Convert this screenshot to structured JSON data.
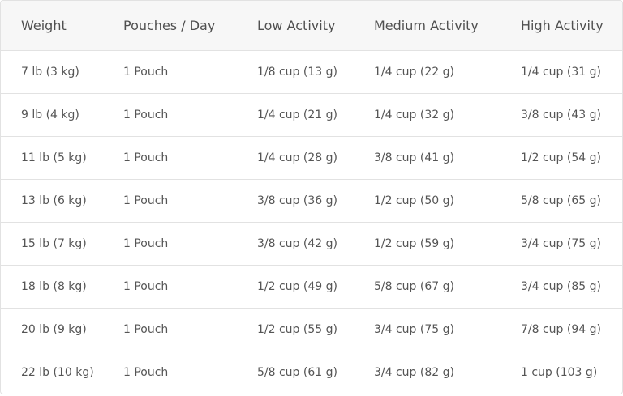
{
  "table": {
    "headers": [
      "Weight",
      "Pouches / Day",
      "Low Activity",
      "Medium Activity",
      "High Activity"
    ],
    "rows": [
      [
        "7 lb (3 kg)",
        "1 Pouch",
        "1/8 cup (13 g)",
        "1/4 cup (22 g)",
        "1/4 cup (31 g)"
      ],
      [
        "9 lb (4 kg)",
        "1 Pouch",
        "1/4 cup (21 g)",
        "1/4 cup (32 g)",
        "3/8 cup (43 g)"
      ],
      [
        "11 lb (5 kg)",
        "1 Pouch",
        "1/4 cup (28 g)",
        "3/8 cup (41 g)",
        "1/2 cup (54 g)"
      ],
      [
        "13 lb (6 kg)",
        "1 Pouch",
        "3/8 cup (36 g)",
        "1/2 cup (50 g)",
        "5/8 cup (65 g)"
      ],
      [
        "15 lb (7 kg)",
        "1 Pouch",
        "3/8 cup (42 g)",
        "1/2 cup (59 g)",
        "3/4 cup (75 g)"
      ],
      [
        "18 lb (8 kg)",
        "1 Pouch",
        "1/2 cup (49 g)",
        "5/8 cup (67 g)",
        "3/4 cup (85 g)"
      ],
      [
        "20 lb (9 kg)",
        "1 Pouch",
        "1/2 cup (55 g)",
        "3/4 cup (75 g)",
        "7/8 cup (94 g)"
      ],
      [
        "22 lb (10 kg)",
        "1 Pouch",
        "5/8 cup (61 g)",
        "3/4 cup (82 g)",
        "1 cup (103 g)"
      ]
    ]
  }
}
